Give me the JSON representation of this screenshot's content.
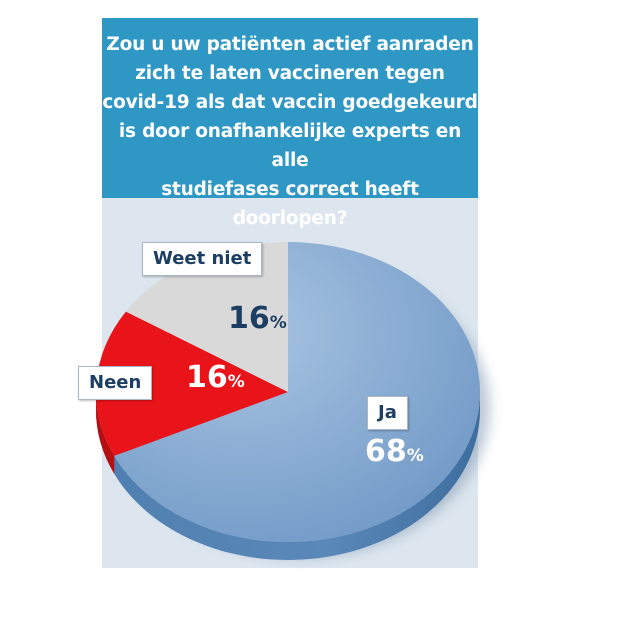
{
  "title": "Zou u uw patiënten actief aanraden\nzich te laten vaccineren tegen\ncovid-19 als dat vaccin goedgekeurd\nis door onafhankelijke experts en alle\nstudiefases correct heeft doorlopen?",
  "colors": {
    "header": "#2f97c4",
    "panel": "#dde6ef",
    "ja": "#7fa5cf",
    "neen": "#e8141a",
    "weet_niet": "#d9d9d9",
    "label_text": "#1d3e63"
  },
  "chart_data": {
    "type": "pie",
    "title": "Zou u uw patiënten actief aanraden zich te laten vaccineren tegen covid-19 als dat vaccin goedgekeurd is door onafhankelijke experts en alle studiefases correct heeft doorlopen?",
    "unit": "%",
    "slices": [
      {
        "label": "Ja",
        "value": 68,
        "value_text": "68",
        "color": "#7fa5cf"
      },
      {
        "label": "Neen",
        "value": 16,
        "value_text": "16",
        "color": "#e8141a"
      },
      {
        "label": "Weet niet",
        "value": 16,
        "value_text": "16",
        "color": "#d9d9d9"
      }
    ]
  }
}
